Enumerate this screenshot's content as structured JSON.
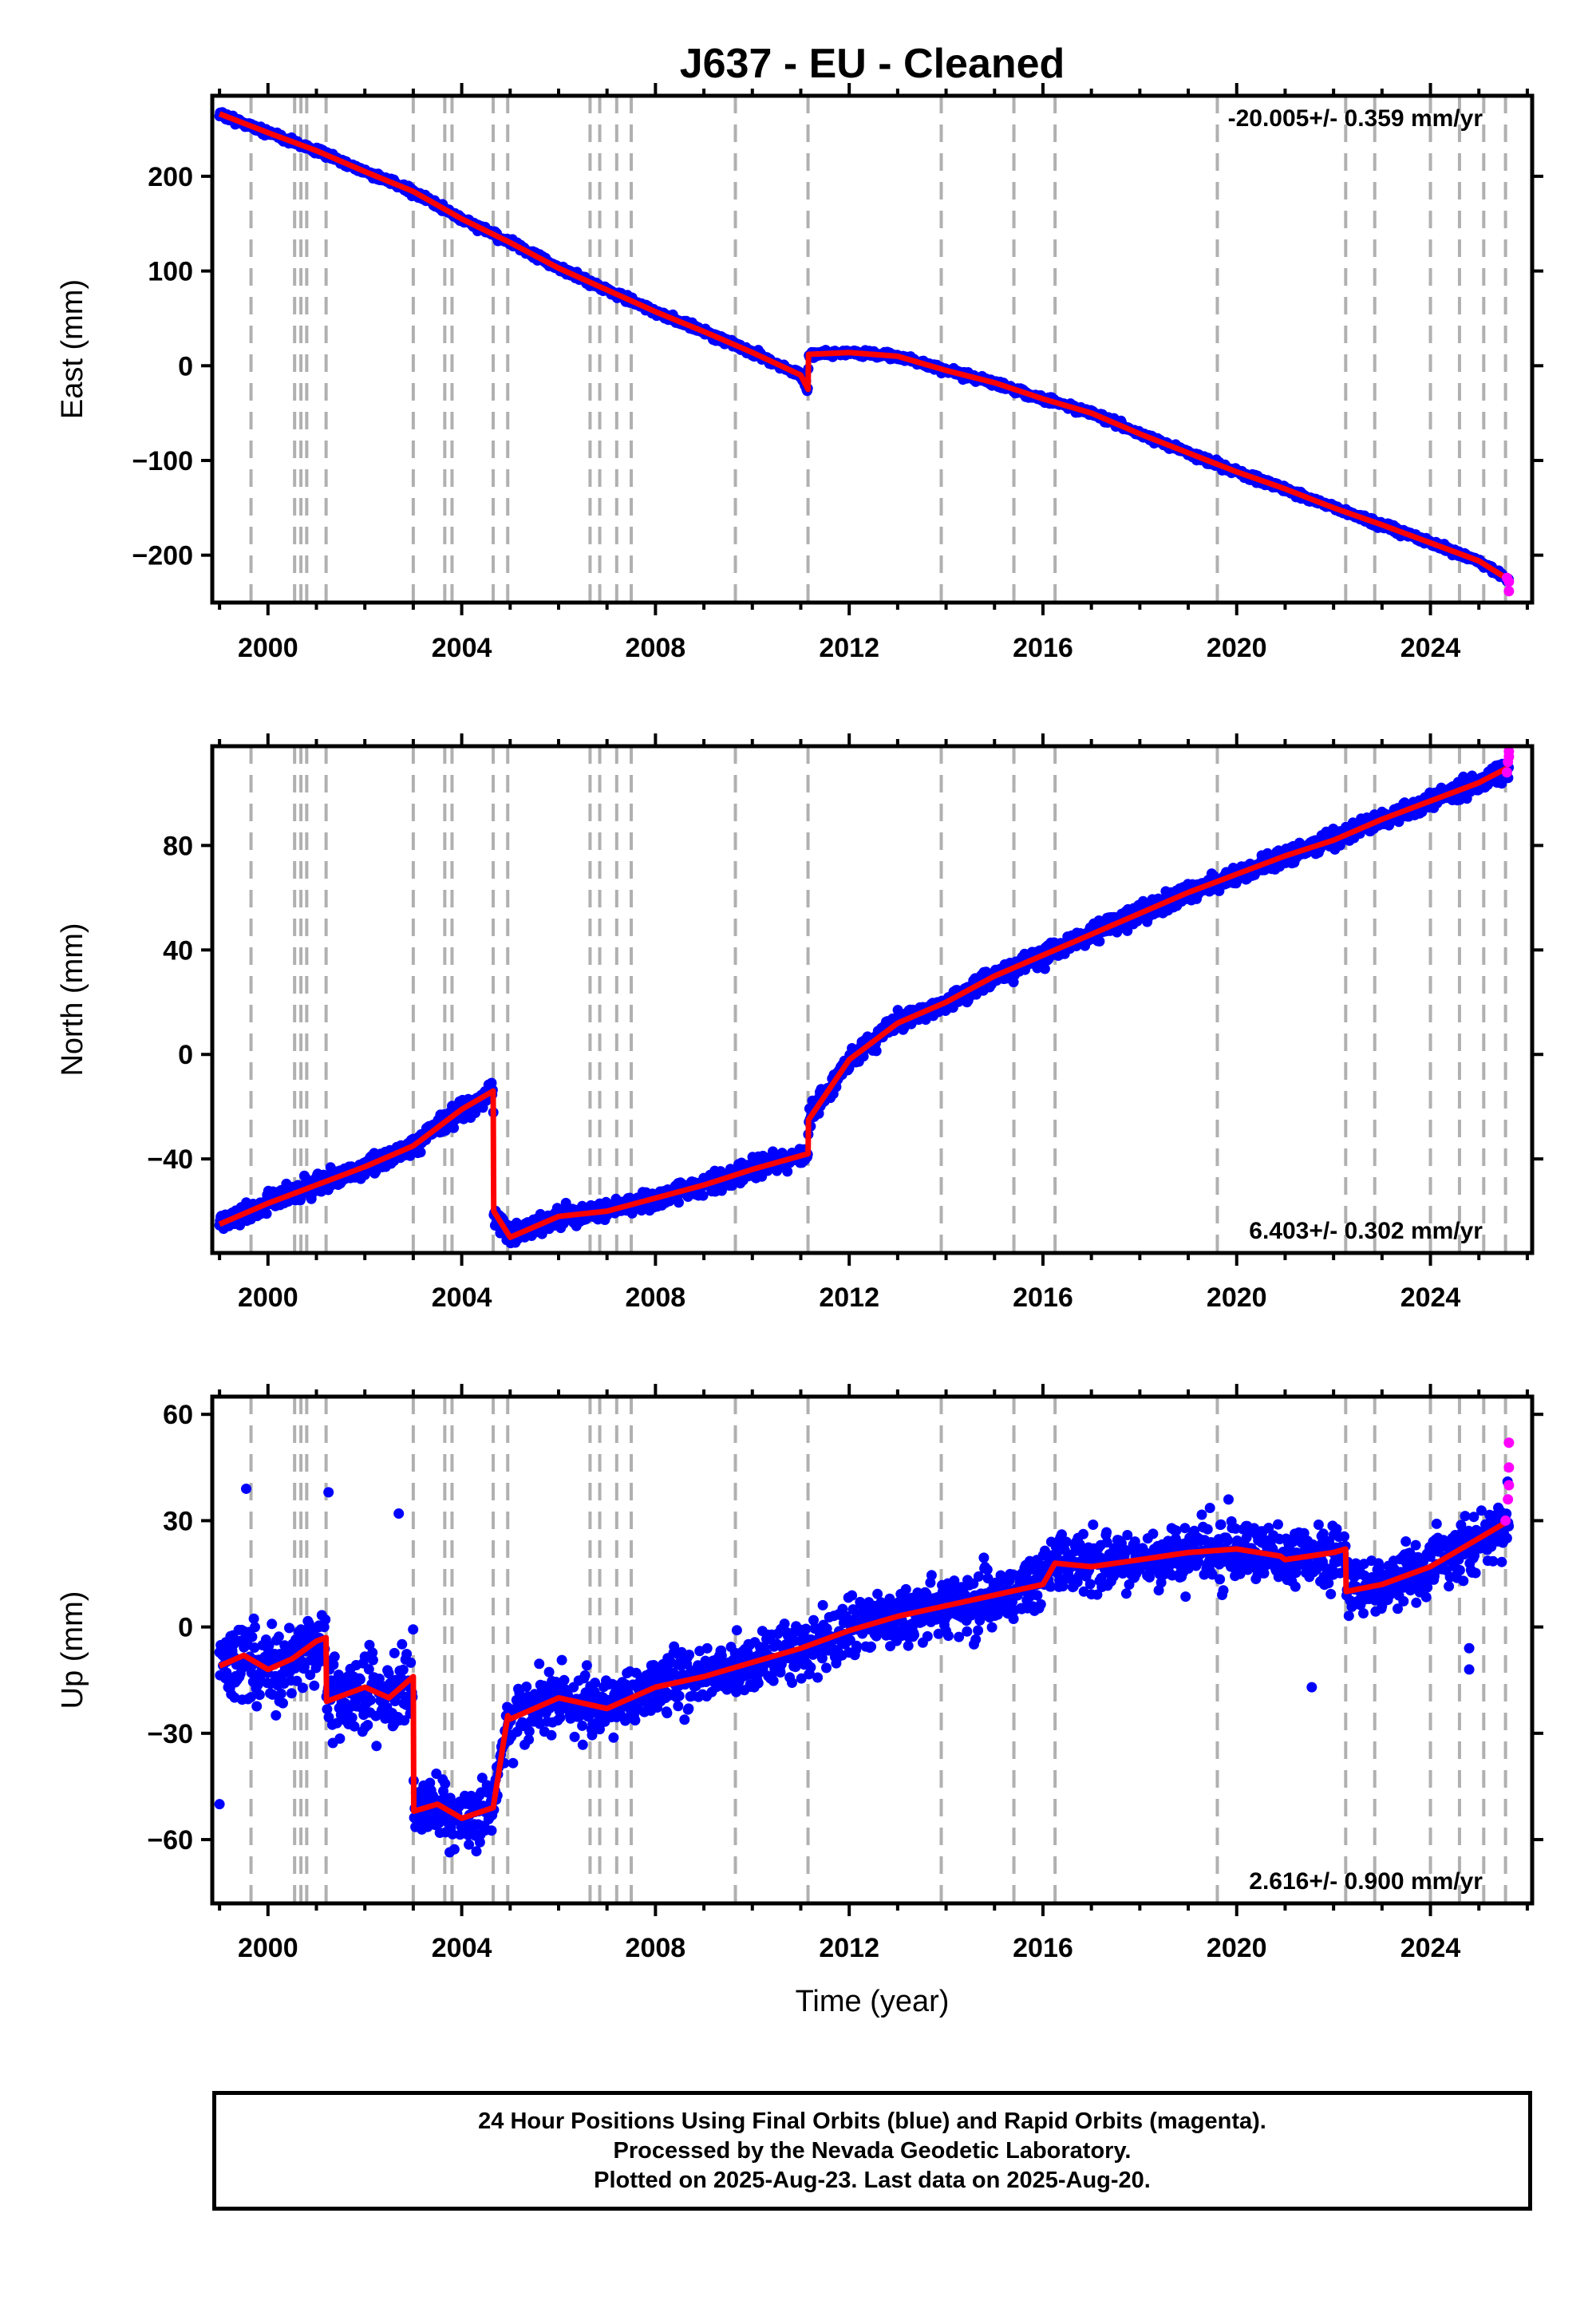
{
  "title": "J637  - EU - Cleaned",
  "colors": {
    "final": "#0000ff",
    "rapid": "#ff00ff",
    "model": "#ff0000",
    "event": "#b0b0b0"
  },
  "xaxis": {
    "label": "Time (year)",
    "range": [
      1998.85,
      2026.1
    ],
    "ticks": [
      2000,
      2004,
      2008,
      2012,
      2016,
      2020,
      2024
    ],
    "minor_step": 1
  },
  "events": [
    1999.65,
    2000.55,
    2000.68,
    2000.8,
    2001.2,
    2003.0,
    2003.65,
    2003.8,
    2004.65,
    2004.95,
    2006.65,
    2006.85,
    2007.2,
    2007.5,
    2009.65,
    2011.15,
    2013.9,
    2015.4,
    2016.25,
    2019.6,
    2022.25,
    2022.85,
    2024.0,
    2024.6,
    2025.1,
    2025.55
  ],
  "footer": {
    "line1": "24 Hour Positions Using Final Orbits (blue) and Rapid Orbits (magenta).",
    "line2": "Processed by the Nevada Geodetic Laboratory.",
    "line3": "Plotted on 2025-Aug-23. Last data on 2025-Aug-20."
  },
  "chart_data": [
    {
      "type": "scatter",
      "ylabel": "East (mm)",
      "ylim": [
        -250,
        285
      ],
      "yticks": [
        -200,
        -100,
        0,
        100,
        200
      ],
      "rate_text": "-20.005+/- 0.359 mm/yr",
      "rate_position": "top-right",
      "series": [
        {
          "kind": "model",
          "x": [
            1999.0,
            2000.0,
            2001.0,
            2002.0,
            2003.0,
            2004.0,
            2005.0,
            2006.0,
            2007.0,
            2008.0,
            2009.0,
            2010.0,
            2011.0,
            2011.15,
            2011.16,
            2012.0,
            2013.0,
            2014.0,
            2015.0,
            2016.0,
            2017.0,
            2018.0,
            2019.0,
            2020.0,
            2021.0,
            2022.0,
            2023.0,
            2024.0,
            2025.0,
            2025.62
          ],
          "y": [
            266,
            246,
            227,
            205,
            184,
            155,
            130,
            103,
            80,
            57,
            36,
            14,
            -10,
            -25,
            12,
            14,
            10,
            -5,
            -18,
            -35,
            -50,
            -72,
            -92,
            -112,
            -130,
            -150,
            -168,
            -187,
            -206,
            -226
          ]
        },
        {
          "kind": "rapid",
          "x": [
            2025.58,
            2025.62,
            2025.62
          ],
          "y": [
            -224,
            -228,
            -238
          ]
        }
      ]
    },
    {
      "type": "scatter",
      "ylabel": "North (mm)",
      "ylim": [
        -76,
        118
      ],
      "yticks": [
        -40,
        0,
        40,
        80
      ],
      "rate_text": "6.403+/- 0.302 mm/yr",
      "rate_position": "bottom-right",
      "series": [
        {
          "kind": "model",
          "x": [
            1999.0,
            2000.0,
            2001.0,
            2002.0,
            2003.0,
            2004.0,
            2004.65,
            2004.66,
            2005.0,
            2006.0,
            2007.0,
            2008.0,
            2009.0,
            2010.0,
            2011.15,
            2011.16,
            2012.0,
            2013.0,
            2014.0,
            2015.0,
            2016.0,
            2017.0,
            2018.0,
            2019.0,
            2020.0,
            2021.0,
            2022.0,
            2023.0,
            2024.0,
            2025.0,
            2025.62
          ],
          "y": [
            -65,
            -57,
            -50,
            -43,
            -35,
            -21,
            -14,
            -60,
            -70,
            -62,
            -60,
            -55,
            -50,
            -44,
            -38,
            -25,
            -2,
            12,
            20,
            30,
            38,
            46,
            54,
            62,
            69,
            76,
            82,
            90,
            97,
            104,
            110
          ]
        },
        {
          "kind": "rapid",
          "x": [
            2025.58,
            2025.6,
            2025.62,
            2025.62
          ],
          "y": [
            108,
            112,
            114,
            116
          ]
        }
      ]
    },
    {
      "type": "scatter",
      "ylabel": "Up (mm)",
      "ylim": [
        -78,
        65
      ],
      "yticks": [
        -60,
        -30,
        0,
        30,
        60
      ],
      "rate_text": "2.616+/- 0.900 mm/yr",
      "rate_position": "bottom-right",
      "series": [
        {
          "kind": "model",
          "x": [
            1999.0,
            1999.5,
            2000.0,
            2000.5,
            2001.0,
            2001.2,
            2001.21,
            2002.0,
            2002.5,
            2003.0,
            2003.01,
            2003.5,
            2004.0,
            2004.65,
            2004.95,
            2005.0,
            2006.0,
            2007.0,
            2008.0,
            2009.0,
            2010.0,
            2011.0,
            2012.0,
            2013.0,
            2014.0,
            2015.0,
            2016.0,
            2016.25,
            2017.0,
            2018.0,
            2019.0,
            2020.0,
            2020.9,
            2021.0,
            2022.0,
            2022.25,
            2022.26,
            2023.0,
            2024.0,
            2025.0,
            2025.62
          ],
          "y": [
            -11,
            -8,
            -12,
            -9,
            -4,
            -3,
            -21,
            -17,
            -20,
            -14,
            -52,
            -50,
            -54,
            -51,
            -25,
            -26,
            -20,
            -23,
            -17,
            -14,
            -10,
            -6,
            -1,
            3,
            6,
            9,
            12,
            18,
            17,
            19,
            21,
            22,
            20,
            19,
            21,
            22,
            10,
            12,
            17,
            25,
            30
          ]
        },
        {
          "kind": "rapid",
          "x": [
            2025.55,
            2025.6,
            2025.62,
            2025.62,
            2025.62
          ],
          "y": [
            30,
            36,
            40,
            45,
            52
          ]
        }
      ]
    }
  ]
}
